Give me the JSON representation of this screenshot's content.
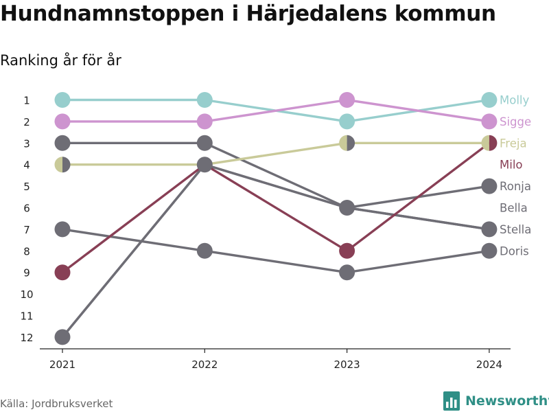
{
  "header": {
    "title": "Hundnamnstoppen i Härjedalens kommun",
    "subtitle": "Ranking år för år"
  },
  "footer": {
    "source": "Källa: Jordbruksverket",
    "brand": "Newsworthy"
  },
  "colors": {
    "Molly": "#97cecd",
    "Sigge": "#cd94cf",
    "Freja": "#c9ca99",
    "Milo": "#883f55",
    "gray": "#6e6d75",
    "axis": "#222222",
    "brand": "#2f8f86"
  },
  "chart_data": {
    "type": "line",
    "chart_subtype": "bump-ranking",
    "x": [
      "2021",
      "2022",
      "2023",
      "2024"
    ],
    "y_ticks": [
      1,
      2,
      3,
      4,
      5,
      6,
      7,
      8,
      9,
      10,
      11,
      12
    ],
    "ylim": [
      12,
      1
    ],
    "y_reversed": true,
    "grid": false,
    "legend": "inline-right",
    "series": [
      {
        "name": "Molly",
        "color": "#97cecd",
        "values": [
          1,
          1,
          2,
          1
        ]
      },
      {
        "name": "Sigge",
        "color": "#cd94cf",
        "values": [
          2,
          2,
          1,
          2
        ]
      },
      {
        "name": "Freja",
        "color": "#c9ca99",
        "values": [
          4,
          4,
          3,
          3
        ]
      },
      {
        "name": "Milo",
        "color": "#883f55",
        "values": [
          9,
          4,
          8,
          3
        ]
      },
      {
        "name": "Ronja",
        "color": "#6e6d75",
        "values": [
          3,
          3,
          6,
          5
        ]
      },
      {
        "name": "Bella",
        "color": "#6e6d75",
        "values": [
          12,
          4,
          6,
          7
        ]
      },
      {
        "name": "Stella",
        "color": "#6e6d75",
        "values": [
          12,
          4,
          6,
          7
        ]
      },
      {
        "name": "Doris",
        "color": "#6e6d75",
        "values": [
          7,
          8,
          9,
          8
        ]
      }
    ],
    "labels": [
      {
        "name": "Molly",
        "rank": 1,
        "color": "#97cecd"
      },
      {
        "name": "Sigge",
        "rank": 2,
        "color": "#cd94cf"
      },
      {
        "name": "Freja",
        "rank": 3,
        "color": "#c9ca99"
      },
      {
        "name": "Milo",
        "rank": 4,
        "color": "#883f55"
      },
      {
        "name": "Ronja",
        "rank": 5,
        "color": "#6e6d75"
      },
      {
        "name": "Bella",
        "rank": 6,
        "color": "#6e6d75"
      },
      {
        "name": "Stella",
        "rank": 7,
        "color": "#6e6d75"
      },
      {
        "name": "Doris",
        "rank": 8,
        "color": "#6e6d75"
      }
    ],
    "markers": [
      {
        "x": "2021",
        "rank": 1,
        "fill": "#97cecd"
      },
      {
        "x": "2021",
        "rank": 2,
        "fill": "#cd94cf"
      },
      {
        "x": "2021",
        "rank": 3,
        "fill": "#6e6d75"
      },
      {
        "x": "2021",
        "rank": 4,
        "left": "#c9ca99",
        "right": "#6e6d75"
      },
      {
        "x": "2021",
        "rank": 7,
        "fill": "#6e6d75"
      },
      {
        "x": "2021",
        "rank": 9,
        "fill": "#883f55"
      },
      {
        "x": "2021",
        "rank": 12,
        "fill": "#6e6d75"
      },
      {
        "x": "2022",
        "rank": 1,
        "fill": "#97cecd"
      },
      {
        "x": "2022",
        "rank": 2,
        "fill": "#cd94cf"
      },
      {
        "x": "2022",
        "rank": 3,
        "fill": "#6e6d75"
      },
      {
        "x": "2022",
        "rank": 4,
        "fill": "#6e6d75"
      },
      {
        "x": "2022",
        "rank": 8,
        "fill": "#6e6d75"
      },
      {
        "x": "2023",
        "rank": 1,
        "fill": "#cd94cf"
      },
      {
        "x": "2023",
        "rank": 2,
        "fill": "#97cecd"
      },
      {
        "x": "2023",
        "rank": 3,
        "left": "#c9ca99",
        "right": "#6e6d75"
      },
      {
        "x": "2023",
        "rank": 6,
        "fill": "#6e6d75"
      },
      {
        "x": "2023",
        "rank": 8,
        "fill": "#883f55"
      },
      {
        "x": "2023",
        "rank": 9,
        "fill": "#6e6d75"
      },
      {
        "x": "2024",
        "rank": 1,
        "fill": "#97cecd"
      },
      {
        "x": "2024",
        "rank": 2,
        "fill": "#cd94cf"
      },
      {
        "x": "2024",
        "rank": 3,
        "left": "#c9ca99",
        "right": "#883f55"
      },
      {
        "x": "2024",
        "rank": 5,
        "fill": "#6e6d75"
      },
      {
        "x": "2024",
        "rank": 7,
        "fill": "#6e6d75"
      },
      {
        "x": "2024",
        "rank": 8,
        "fill": "#6e6d75"
      }
    ]
  }
}
